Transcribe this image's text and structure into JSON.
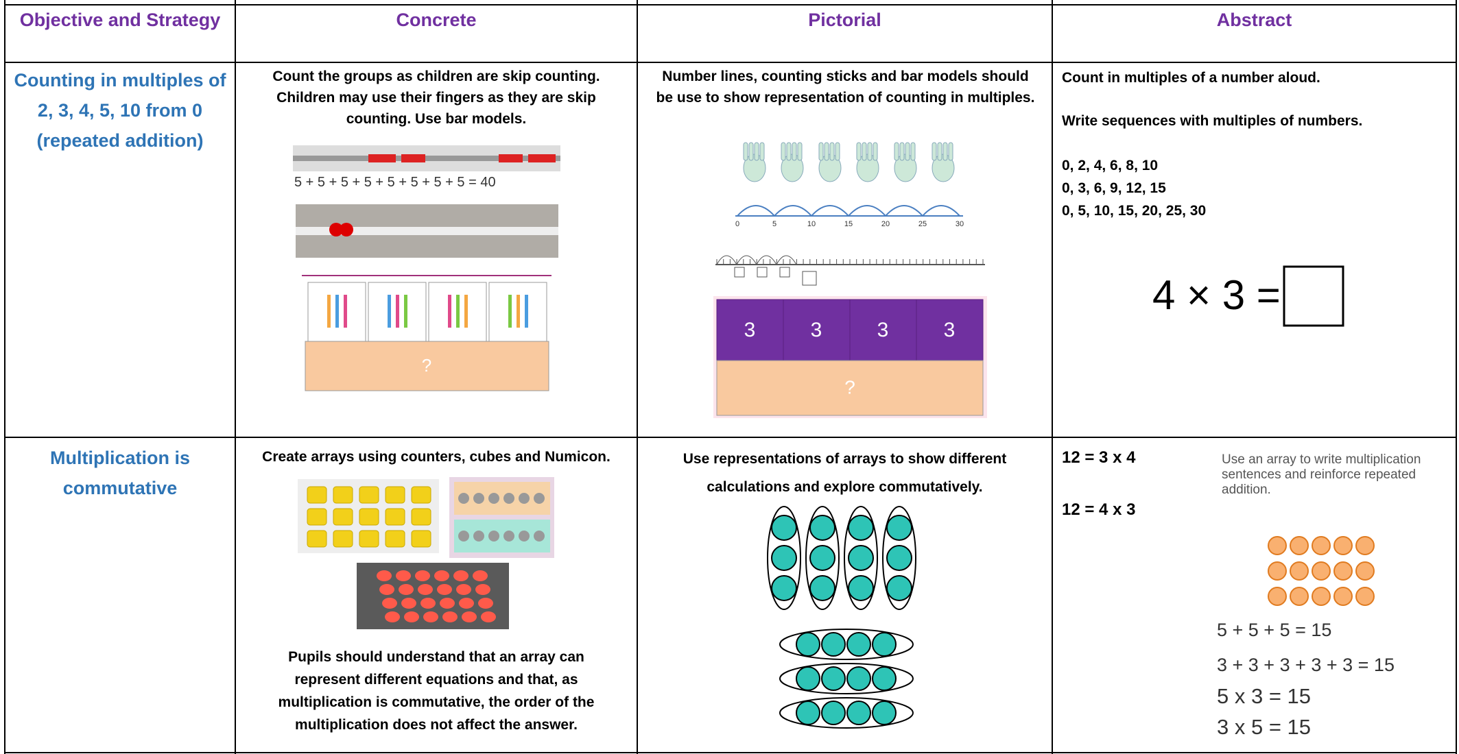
{
  "table": {
    "headers": [
      "Objective and Strategy",
      "Concrete",
      "Pictorial",
      "Abstract"
    ],
    "rows": [
      {
        "objective": "Counting in multiples of 2, 3, 4, 5, 10 from 0 (repeated addition)",
        "concrete": {
          "text": "Count the groups as children are skip counting. Children may use their fingers as they are skip counting. Use bar models.",
          "bead_equation": "5 + 5 + 5 + 5 + 5 + 5 + 5 + 5 = 40",
          "bar_model_whole": "?"
        },
        "pictorial": {
          "text": "Number lines, counting sticks and bar models should be use to show representation of counting in multiples.",
          "number_line_labels": [
            "0",
            "5",
            "10",
            "15",
            "20",
            "25",
            "30"
          ],
          "bar_model_parts": [
            "3",
            "3",
            "3",
            "3"
          ],
          "bar_model_whole": "?"
        },
        "abstract": {
          "lines": [
            "Count in multiples of a number aloud.",
            "Write sequences with multiples of numbers."
          ],
          "sequences": [
            "0, 2, 4, 6, 8, 10",
            "0, 3, 6, 9, 12, 15",
            "0, 5, 10, 15, 20, 25, 30"
          ],
          "equation": "4 × 3 ="
        }
      },
      {
        "objective": "Multiplication is commutative",
        "concrete": {
          "text": "Create arrays using counters, cubes and Numicon.",
          "note": "Pupils should understand that an array can represent different equations and that, as multiplication is commutative, the order of the multiplication does not affect the answer."
        },
        "pictorial": {
          "text": "Use representations of arrays to show different calculations and explore commutatively."
        },
        "abstract": {
          "equations": [
            "12 = 3 x 4",
            "12 = 4 x 3"
          ],
          "caption": "Use an array to write multiplication sentences and reinforce repeated addition.",
          "sums": [
            "5 + 5 + 5 = 15",
            "3 + 3 + 3 + 3 + 3 = 15",
            "5 x 3 = 15",
            "3 x 5 = 15"
          ]
        }
      }
    ]
  }
}
